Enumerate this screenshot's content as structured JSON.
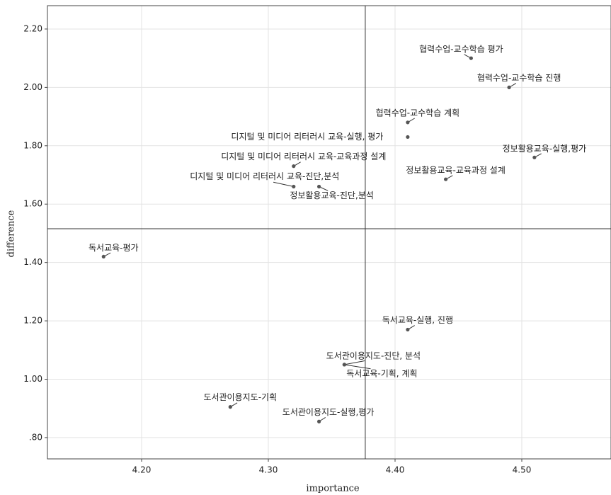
{
  "chart_data": {
    "type": "scatter",
    "x_label": "importance",
    "y_label": "difference",
    "xlim": [
      4.1257,
      4.5704
    ],
    "ylim": [
      0.727,
      2.28
    ],
    "xticks": [
      {
        "value": 4.2,
        "label": "4.20"
      },
      {
        "value": 4.3,
        "label": "4.30"
      },
      {
        "value": 4.4,
        "label": "4.40"
      },
      {
        "value": 4.5,
        "label": "4.50"
      }
    ],
    "yticks": [
      {
        "value": 0.8,
        "label": ".80"
      },
      {
        "value": 1.0,
        "label": "1.00"
      },
      {
        "value": 1.2,
        "label": "1.20"
      },
      {
        "value": 1.4,
        "label": "1.40"
      },
      {
        "value": 1.6,
        "label": "1.60"
      },
      {
        "value": 1.8,
        "label": "1.80"
      },
      {
        "value": 2.0,
        "label": "2.00"
      },
      {
        "value": 2.2,
        "label": "2.20"
      }
    ],
    "grid": true,
    "color": "#555555",
    "ref_x": 4.3765,
    "ref_y": 1.5155,
    "labels": [
      "협력수업-교수학습 평가",
      "협력수업-교수학습 진행",
      "협력수업-교수학습 계획",
      "디지털 및 미디어 리터러시 교육-실행, 평가",
      "정보활용교육-실행,평가",
      "디지털 및 미디어 리터러시 교육-교육과정 설계",
      "정보활용교육-교육과정 설계",
      "디지털 및 미디어 리터러시 교육-진단,분석",
      "정보활용교육-진단,분석",
      "독서교육-평가",
      "독서교육-실행, 진행",
      "도서관이용지도-진단, 분석",
      "독서교육-기획, 계획",
      "도서관이용지도-기획",
      "도서관이용지도-실행,평가"
    ],
    "x": [
      4.46,
      4.49,
      4.41,
      4.41,
      4.51,
      4.32,
      4.44,
      4.32,
      4.34,
      4.17,
      4.41,
      4.36,
      4.36,
      4.27,
      4.34
    ],
    "values": [
      2.1,
      2.0,
      1.88,
      1.83,
      1.76,
      1.73,
      1.685,
      1.66,
      1.66,
      1.42,
      1.17,
      1.05,
      1.05,
      0.905,
      0.855
    ]
  }
}
